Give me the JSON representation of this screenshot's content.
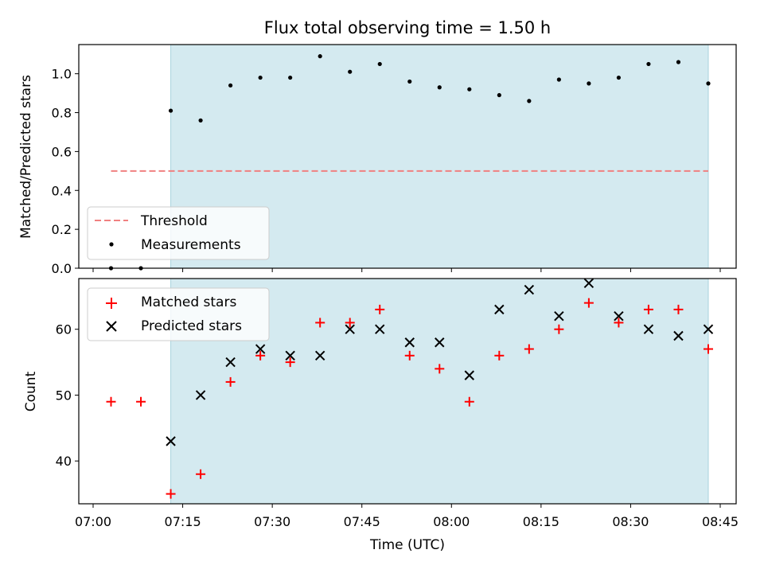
{
  "chart_data": {
    "type": "scatter",
    "title": "Flux total observing time = 1.50 h",
    "xlabel": "Time (UTC)",
    "x_ticks": [
      "07:00",
      "07:15",
      "07:30",
      "07:45",
      "08:00",
      "08:15",
      "08:30",
      "08:45"
    ],
    "shaded_region": {
      "from": "07:13",
      "to": "08:43",
      "color": "#d4eaf0"
    },
    "times": [
      "07:03",
      "07:08",
      "07:13",
      "07:18",
      "07:23",
      "07:28",
      "07:33",
      "07:38",
      "07:43",
      "07:48",
      "07:53",
      "07:58",
      "08:03",
      "08:08",
      "08:13",
      "08:18",
      "08:23",
      "08:28",
      "08:33",
      "08:38",
      "08:43"
    ],
    "panels": [
      {
        "ylabel": "Matched/Predicted stars",
        "ylim": [
          0,
          1.15
        ],
        "y_ticks": [
          "0.0",
          "0.2",
          "0.4",
          "0.6",
          "0.8",
          "1.0"
        ],
        "threshold": {
          "name": "Threshold",
          "value": 0.5,
          "color": "#f08080"
        },
        "series": [
          {
            "name": "Measurements",
            "color": "#000000",
            "marker": "dot",
            "values": [
              0.0,
              0.0,
              0.81,
              0.76,
              0.94,
              0.98,
              0.98,
              1.09,
              1.01,
              1.05,
              0.96,
              0.93,
              0.92,
              0.89,
              0.86,
              0.97,
              0.95,
              0.98,
              1.05,
              1.06,
              0.95
            ]
          }
        ],
        "legend_position": "lower-left"
      },
      {
        "ylabel": "Count",
        "ylim": [
          33.5,
          67.7
        ],
        "y_ticks": [
          "40",
          "50",
          "60"
        ],
        "series": [
          {
            "name": "Matched stars",
            "color": "#ff0000",
            "marker": "plus",
            "values": [
              49,
              49,
              35,
              38,
              52,
              56,
              55,
              61,
              61,
              63,
              56,
              54,
              49,
              56,
              57,
              60,
              64,
              61,
              63,
              63,
              57
            ]
          },
          {
            "name": "Predicted stars",
            "color": "#000000",
            "marker": "x",
            "values": [
              null,
              null,
              43,
              50,
              55,
              57,
              56,
              56,
              60,
              60,
              58,
              58,
              53,
              63,
              66,
              62,
              67,
              62,
              60,
              59,
              60
            ]
          }
        ],
        "legend_position": "upper-left"
      }
    ]
  }
}
